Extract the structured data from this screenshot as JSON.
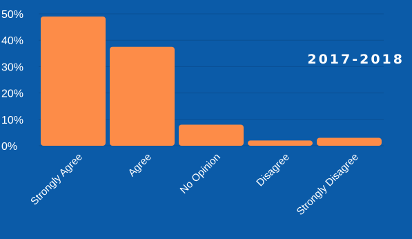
{
  "annotation": "2017-2018",
  "colors": {
    "background": "#0b5ba8",
    "bar": "#fd8c48",
    "grid": "#0a4f93",
    "text": "#ffffff"
  },
  "chart_data": {
    "type": "bar",
    "categories": [
      "Strongly Agree",
      "Agree",
      "No Opinion",
      "Disagree",
      "Strongly Disagree"
    ],
    "values": [
      49,
      37.5,
      8,
      2,
      3
    ],
    "ylim": [
      0,
      50
    ],
    "yticks": [
      0,
      10,
      20,
      30,
      40,
      50
    ],
    "ytick_labels": [
      "0%",
      "10%",
      "20%",
      "30%",
      "40%",
      "50%"
    ],
    "grid": true,
    "legend": "none"
  }
}
